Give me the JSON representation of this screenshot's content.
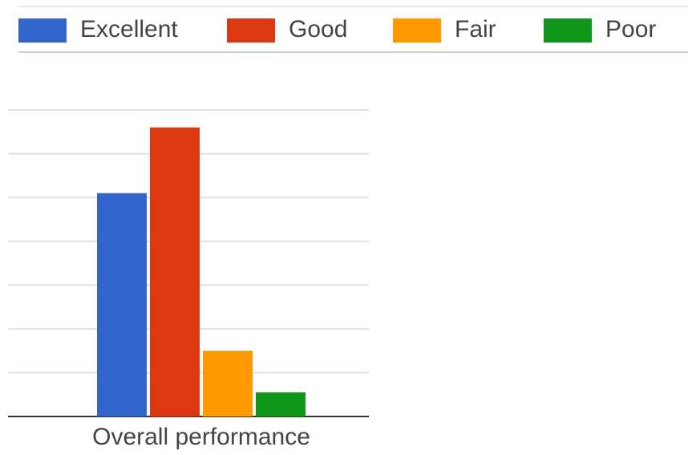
{
  "chart_data": {
    "type": "bar",
    "categories": [
      "Overall performance"
    ],
    "series": [
      {
        "name": "Excellent",
        "color": "#3366cc",
        "values": [
          5.1
        ]
      },
      {
        "name": "Good",
        "color": "#dc3912",
        "values": [
          6.6
        ]
      },
      {
        "name": "Fair",
        "color": "#ff9900",
        "values": [
          1.5
        ]
      },
      {
        "name": "Poor",
        "color": "#109618",
        "values": [
          0.55
        ]
      }
    ],
    "ylim": [
      0,
      7
    ],
    "yticks": [
      0,
      1,
      2,
      3,
      4,
      5,
      6,
      7
    ],
    "grid": true,
    "legend": "top"
  }
}
